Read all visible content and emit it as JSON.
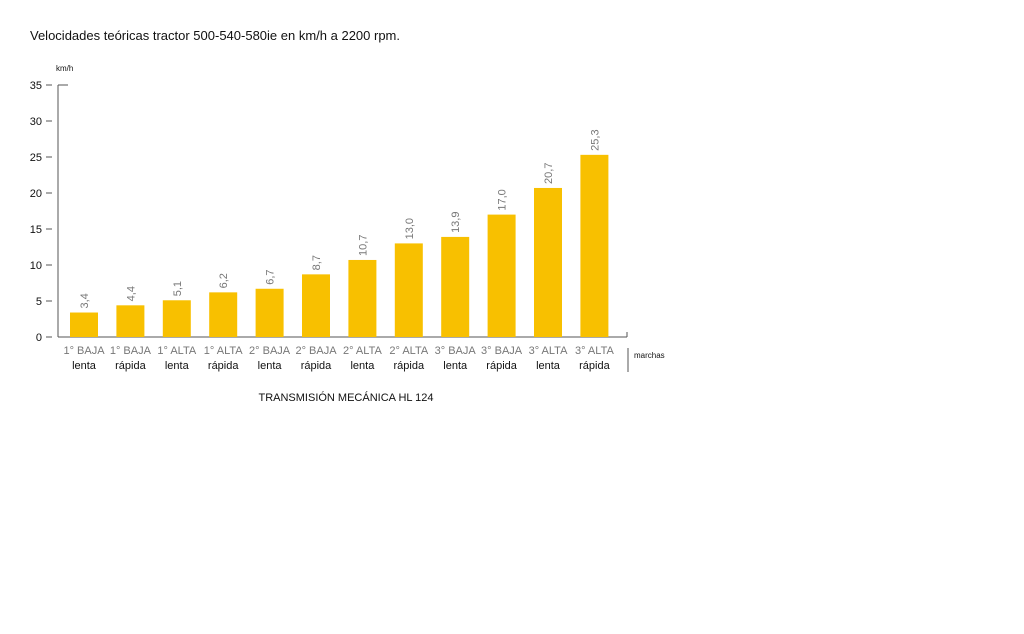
{
  "chart_data": {
    "type": "bar",
    "title": "Velocidades teóricas tractor 500-540-580ie en km/h a 2200 rpm.",
    "ylabel": "km/h",
    "xlabel": "marchas",
    "caption": "TRANSMISIÓN MECÁNICA HL 124",
    "ylim": [
      0,
      35
    ],
    "yticks": [
      0,
      5,
      10,
      15,
      20,
      25,
      30,
      35
    ],
    "categories": [
      {
        "top": "1° BAJA",
        "bottom": "lenta"
      },
      {
        "top": "1° BAJA",
        "bottom": "rápida"
      },
      {
        "top": "1° ALTA",
        "bottom": "lenta"
      },
      {
        "top": "1° ALTA",
        "bottom": "rápida"
      },
      {
        "top": "2° BAJA",
        "bottom": "lenta"
      },
      {
        "top": "2° BAJA",
        "bottom": "rápida"
      },
      {
        "top": "2° ALTA",
        "bottom": "lenta"
      },
      {
        "top": "2° ALTA",
        "bottom": "rápida"
      },
      {
        "top": "3° BAJA",
        "bottom": "lenta"
      },
      {
        "top": "3° BAJA",
        "bottom": "rápida"
      },
      {
        "top": "3° ALTA",
        "bottom": "lenta"
      },
      {
        "top": "3° ALTA",
        "bottom": "rápida"
      }
    ],
    "values": [
      3.4,
      4.4,
      5.1,
      6.2,
      6.7,
      8.7,
      10.7,
      13.0,
      13.9,
      17.0,
      20.7,
      25.3
    ],
    "value_labels": [
      "3,4",
      "4,4",
      "5,1",
      "6,2",
      "6,7",
      "8,7",
      "10,7",
      "13,0",
      "13,9",
      "17,0",
      "20,7",
      "25,3"
    ],
    "grid": false,
    "bar_color": "#f8c000"
  }
}
